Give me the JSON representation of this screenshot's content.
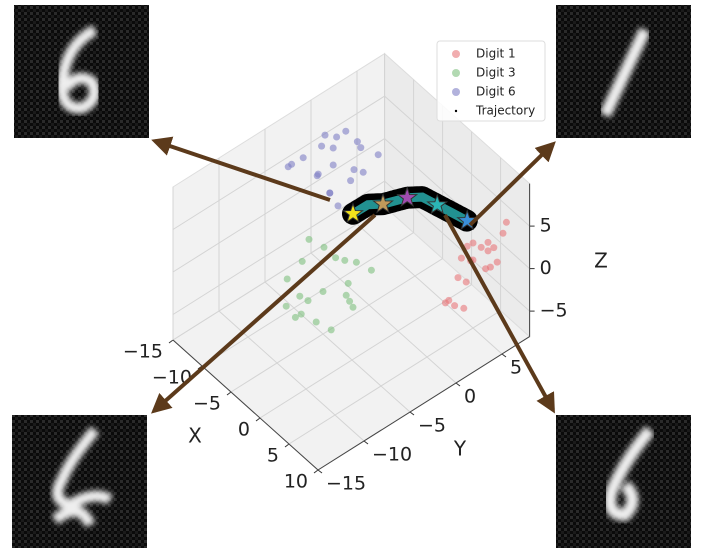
{
  "chart_data": {
    "type": "scatter3d",
    "xlabel": "X",
    "ylabel": "Y",
    "zlabel": "Z",
    "xlim": [
      -15,
      10
    ],
    "ylim": [
      -15,
      8
    ],
    "zlim": [
      -8,
      10
    ],
    "xticks": [
      {
        "value": -15,
        "label": "−15"
      },
      {
        "value": -10,
        "label": "−10"
      },
      {
        "value": -5,
        "label": "−5"
      },
      0,
      5,
      10
    ],
    "yticks": [
      {
        "value": -15,
        "label": "−15"
      },
      {
        "value": -10,
        "label": "−10"
      },
      {
        "value": -5,
        "label": "−5"
      },
      0,
      5
    ],
    "zticks": [
      {
        "value": -5,
        "label": "−5"
      },
      0,
      5
    ],
    "legend": "upper right",
    "series": [
      {
        "name": "Digit 1",
        "color": "#e8767a",
        "x": [
          5,
          6,
          4,
          7,
          5,
          3,
          6,
          8,
          4,
          5,
          7,
          6,
          3,
          5,
          4,
          6,
          7,
          5,
          8,
          4
        ],
        "y": [
          5,
          6,
          4,
          7,
          3,
          5,
          6,
          4,
          7,
          5,
          3,
          8,
          6,
          4,
          5,
          7,
          6,
          2,
          5,
          3
        ],
        "z": [
          0,
          2,
          -2,
          3,
          -4,
          -1,
          1,
          4,
          -3,
          2,
          0,
          3,
          -2,
          -5,
          1,
          -1,
          2,
          -3,
          1,
          -4
        ]
      },
      {
        "name": "Digit 3",
        "color": "#7fbf7f",
        "x": [
          -5,
          -8,
          -3,
          -6,
          -2,
          -9,
          -4,
          -7,
          -1,
          -5,
          -6,
          -3,
          -8,
          -4,
          -2,
          -7,
          -5,
          -9,
          -3,
          -6
        ],
        "y": [
          -5,
          -3,
          -7,
          -2,
          -6,
          -4,
          -8,
          -1,
          -5,
          -9,
          -6,
          -3,
          -7,
          -2,
          -4,
          -6,
          -8,
          -5,
          -1,
          -3
        ],
        "z": [
          -3,
          -1,
          -4,
          -2,
          -5,
          0,
          -3,
          -6,
          -1,
          -2,
          -4,
          -5,
          -2,
          -1,
          -3,
          0,
          -4,
          -6,
          -2,
          -1
        ]
      },
      {
        "name": "Digit 6",
        "color": "#7f7fc4",
        "x": [
          -8,
          -10,
          -6,
          -9,
          -7,
          -11,
          -5,
          -8,
          -12,
          -6,
          -9,
          -7,
          -10,
          -4,
          -8,
          -6,
          -11,
          -9,
          -7,
          -5
        ],
        "y": [
          -2,
          -4,
          0,
          -1,
          -3,
          -5,
          1,
          -2,
          -4,
          -1,
          0,
          -3,
          -2,
          -4,
          1,
          -5,
          -1,
          -3,
          0,
          -2
        ],
        "z": [
          8,
          9,
          7,
          10,
          6,
          8,
          9,
          10,
          7,
          8,
          10,
          6,
          9,
          7,
          8,
          10,
          9,
          7,
          10,
          8
        ]
      },
      {
        "name": "Trajectory",
        "color": "#000000",
        "x": [
          -3,
          -2,
          -1,
          0,
          1,
          2,
          3,
          4
        ],
        "y": [
          -3,
          -2,
          -1,
          1,
          2,
          3,
          4,
          5
        ],
        "z": [
          6,
          7,
          7,
          7,
          7,
          6,
          5,
          4
        ]
      }
    ],
    "keyframes": {
      "x": [
        -3,
        -1,
        0,
        2,
        4
      ],
      "y": [
        -3,
        -1,
        1,
        3,
        5
      ],
      "z": [
        6,
        7,
        7,
        6,
        4
      ],
      "colors": [
        "#f2e21c",
        "#c09a5a",
        "#a04cb0",
        "#2bb5b5",
        "#3a8fd9"
      ]
    }
  }
}
